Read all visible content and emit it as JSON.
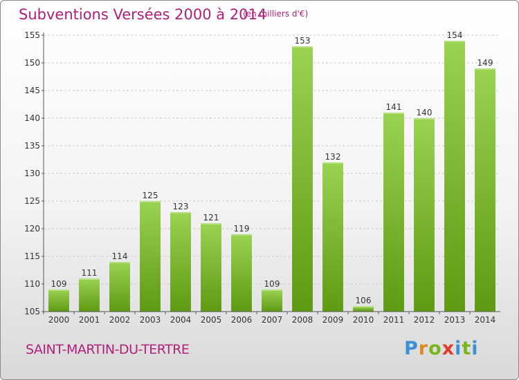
{
  "title": "Subventions Versées 2000 à 2014",
  "unit_note": "(en milliers d'€)",
  "commune": "SAINT-MARTIN-DU-TERTRE",
  "logo": {
    "text": "Proxiti",
    "letters": [
      "P",
      "r",
      "o",
      "x",
      "i",
      "t",
      "i"
    ],
    "colors": [
      "#3b8fd6",
      "#e08a1e",
      "#7ab51d",
      "#e03a2a",
      "#3b8fd6",
      "#7ab51d",
      "#3b8fd6"
    ]
  },
  "colors": {
    "bar_light": "#9ad252",
    "bar_dark": "#5e9a12",
    "title": "#b0207a"
  },
  "chart_data": {
    "type": "bar",
    "title": "Subventions Versées 2000 à 2014",
    "categories": [
      "2000",
      "2001",
      "2002",
      "2003",
      "2004",
      "2005",
      "2006",
      "2007",
      "2008",
      "2009",
      "2010",
      "2011",
      "2012",
      "2013",
      "2014"
    ],
    "values": [
      109,
      111,
      114,
      125,
      123,
      121,
      119,
      109,
      153,
      132,
      106,
      141,
      140,
      154,
      149
    ],
    "ylim": [
      105,
      155
    ],
    "yticks": [
      105,
      110,
      115,
      120,
      125,
      130,
      135,
      140,
      145,
      150,
      155
    ],
    "grid": true,
    "xlabel": "",
    "ylabel": ""
  }
}
